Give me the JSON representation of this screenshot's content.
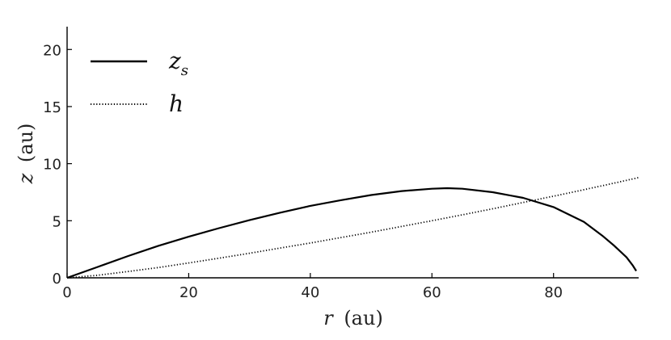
{
  "chart_data": {
    "type": "line",
    "title": "",
    "xlabel": {
      "var": "r",
      "unit": "(au)"
    },
    "ylabel": {
      "var": "z",
      "unit": "(au)"
    },
    "xlim": [
      0,
      94
    ],
    "ylim": [
      0,
      22
    ],
    "xticks": [
      0,
      20,
      40,
      60,
      80
    ],
    "yticks": [
      0,
      5,
      10,
      15,
      20
    ],
    "grid": false,
    "legend_position": "top-left",
    "series": [
      {
        "name": "z",
        "name_subscript": "s",
        "style": "solid",
        "color": "#000000",
        "x": [
          0,
          5,
          10,
          15,
          20,
          25,
          30,
          35,
          40,
          45,
          50,
          55,
          60,
          62.5,
          65,
          70,
          75,
          80,
          85,
          88,
          90,
          92,
          93,
          93.6
        ],
        "y": [
          0,
          0.95,
          1.9,
          2.8,
          3.6,
          4.35,
          5.05,
          5.7,
          6.3,
          6.8,
          7.25,
          7.6,
          7.8,
          7.85,
          7.8,
          7.5,
          7.0,
          6.2,
          4.9,
          3.7,
          2.8,
          1.8,
          1.1,
          0.6
        ]
      },
      {
        "name": "h",
        "style": "dotted",
        "color": "#000000",
        "x": [
          0,
          5,
          10,
          15,
          20,
          25,
          30,
          35,
          40,
          45,
          50,
          55,
          60,
          65,
          70,
          75,
          80,
          85,
          90,
          94
        ],
        "y": [
          0,
          0.22,
          0.55,
          0.9,
          1.3,
          1.72,
          2.15,
          2.6,
          3.05,
          3.52,
          4.0,
          4.5,
          5.0,
          5.52,
          6.05,
          6.6,
          7.15,
          7.72,
          8.3,
          8.78
        ]
      }
    ]
  }
}
